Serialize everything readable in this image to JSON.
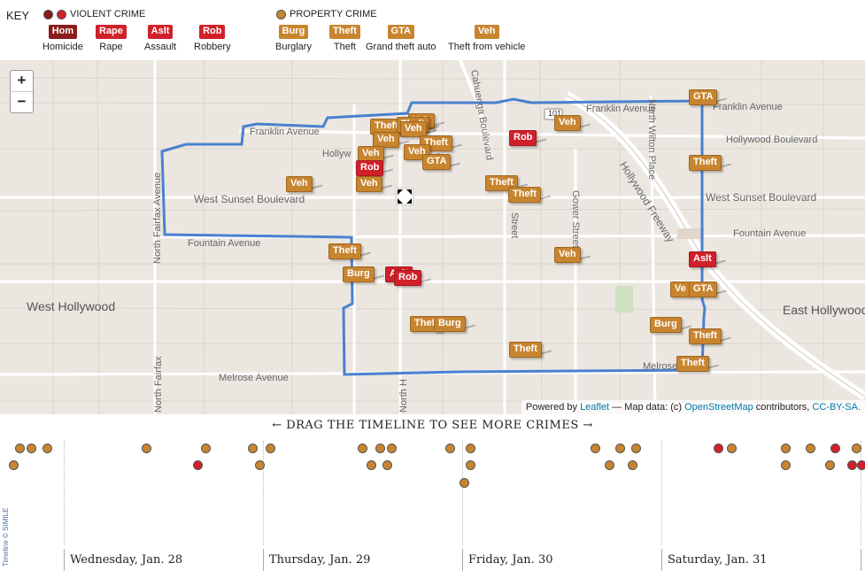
{
  "key": {
    "title": "KEY",
    "violent_heading": "VIOLENT CRIME",
    "property_heading": "PROPERTY CRIME",
    "violent_items": [
      {
        "abbr": "Hom",
        "label": "Homicide",
        "color": "#8b1a1a"
      },
      {
        "abbr": "Rape",
        "label": "Rape",
        "color": "#d0202a"
      },
      {
        "abbr": "Aslt",
        "label": "Assault",
        "color": "#d0202a"
      },
      {
        "abbr": "Rob",
        "label": "Robbery",
        "color": "#d0202a"
      }
    ],
    "property_items": [
      {
        "abbr": "Burg",
        "label": "Burglary",
        "color": "#c8852f"
      },
      {
        "abbr": "Theft",
        "label": "Theft",
        "color": "#c8852f"
      },
      {
        "abbr": "GTA",
        "label": "Grand theft auto",
        "color": "#c8852f"
      },
      {
        "abbr": "Veh",
        "label": "Theft from vehicle",
        "color": "#c8852f"
      }
    ]
  },
  "map": {
    "zoom_in": "+",
    "zoom_out": "−",
    "street_labels": {
      "franklin_w": "Franklin Avenue",
      "franklin_e": "Franklin Avenue",
      "franklin_far": "Franklin Avenue",
      "hollywood_w": "Hollyw",
      "hollywood_e": "Hollywood Boulevard",
      "sunset_w": "West Sunset Boulevard",
      "sunset_e": "West Sunset Boulevard",
      "fountain_w": "Fountain Avenue",
      "fountain_e": "Fountain Avenue",
      "melrose_w": "Melrose Avenue",
      "melrose_e": "Melrose",
      "fairfax": "North Fairfax Avenue",
      "fairfax_s": "North Fairfax",
      "cahuenga": "Cahuenga Boulevard",
      "wilton": "North Wilton Place",
      "gower": "Gower Street",
      "freeway": "Hollywood Freeway",
      "highland": "North H",
      "vine": "Street",
      "west_hollywood": "West Hollywood",
      "east_hollywood": "East Hollywood",
      "route_101": "101"
    },
    "markers": [
      {
        "t": "Theft",
        "k": "prop"
      },
      {
        "t": "Veh",
        "k": "prop"
      },
      {
        "t": "Theft",
        "k": "prop"
      },
      {
        "t": "Veh",
        "k": "prop"
      },
      {
        "t": "Veh",
        "k": "prop"
      },
      {
        "t": "Theft",
        "k": "prop"
      },
      {
        "t": "Veh",
        "k": "prop"
      },
      {
        "t": "Veh",
        "k": "prop"
      },
      {
        "t": "GTA",
        "k": "prop"
      },
      {
        "t": "Rob",
        "k": "viol"
      },
      {
        "t": "Veh",
        "k": "prop"
      },
      {
        "t": "Veh",
        "k": "prop"
      },
      {
        "t": "Rob",
        "k": "viol"
      },
      {
        "t": "Veh",
        "k": "prop"
      },
      {
        "t": "GTA",
        "k": "prop"
      },
      {
        "t": "Theft",
        "k": "prop"
      },
      {
        "t": "Theft",
        "k": "prop"
      },
      {
        "t": "Theft",
        "k": "prop"
      },
      {
        "t": "Veh",
        "k": "prop"
      },
      {
        "t": "Theft",
        "k": "prop"
      },
      {
        "t": "Burg",
        "k": "prop"
      },
      {
        "t": "Aslt",
        "k": "viol"
      },
      {
        "t": "Rob",
        "k": "viol"
      },
      {
        "t": "Aslt",
        "k": "viol"
      },
      {
        "t": "Ve",
        "k": "prop"
      },
      {
        "t": "GTA",
        "k": "prop"
      },
      {
        "t": "Theft",
        "k": "prop"
      },
      {
        "t": "Burg",
        "k": "prop"
      },
      {
        "t": "Burg",
        "k": "prop"
      },
      {
        "t": "Theft",
        "k": "prop"
      },
      {
        "t": "Theft",
        "k": "prop"
      },
      {
        "t": "Theft",
        "k": "prop"
      }
    ],
    "attribution": {
      "powered_by": "Powered by",
      "leaflet": "Leaflet",
      "map_data": "— Map data: (c)",
      "osm": "OpenStreetMap",
      "contributors": "contributors,",
      "license": "CC-BY-SA."
    }
  },
  "timeline": {
    "drag_hint": "←   DRAG THE TIMELINE TO SEE MORE CRIMES   →",
    "days": [
      "Wednesday, Jan. 28",
      "Thursday, Jan. 29",
      "Friday, Jan. 30",
      "Saturday, Jan. 31"
    ],
    "credit": "Timeline © SIMILE",
    "colors": {
      "property": "#c8852f",
      "violent": "#d0202a"
    }
  }
}
